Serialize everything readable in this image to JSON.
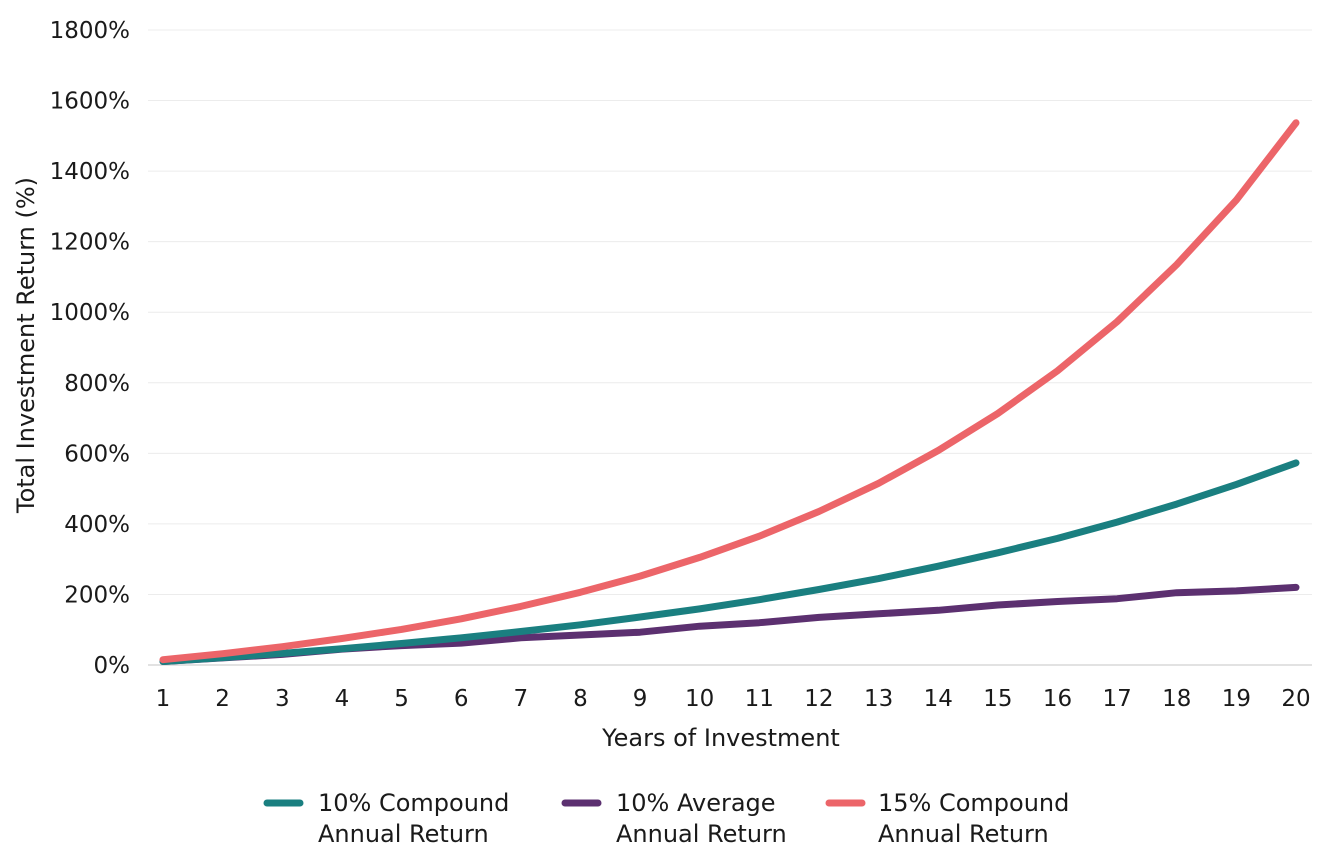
{
  "chart_data": {
    "type": "line",
    "title": "",
    "xlabel": "Years of Investment",
    "ylabel": "Total Investment Return (%)",
    "x": [
      1,
      2,
      3,
      4,
      5,
      6,
      7,
      8,
      9,
      10,
      11,
      12,
      13,
      14,
      15,
      16,
      17,
      18,
      19,
      20
    ],
    "x_tick_labels": [
      "1",
      "2",
      "3",
      "4",
      "5",
      "6",
      "7",
      "8",
      "9",
      "10",
      "11",
      "12",
      "13",
      "14",
      "15",
      "16",
      "17",
      "18",
      "19",
      "20"
    ],
    "ylim": [
      0,
      1800
    ],
    "y_ticks": [
      0,
      200,
      400,
      600,
      800,
      1000,
      1200,
      1400,
      1600,
      1800
    ],
    "y_tick_labels": [
      "0%",
      "200%",
      "400%",
      "600%",
      "800%",
      "1000%",
      "1200%",
      "1400%",
      "1600%",
      "1800%"
    ],
    "grid": true,
    "legend_position": "bottom",
    "series": [
      {
        "name_line1": "10% Compound",
        "name_line2": "Annual Return",
        "color": "#1a7f80",
        "values": [
          10,
          21,
          33,
          46,
          61,
          77,
          95,
          114,
          136,
          159,
          185,
          214,
          245,
          280,
          318,
          359,
          405,
          456,
          512,
          573
        ]
      },
      {
        "name_line1": "10% Average",
        "name_line2": "Annual Return",
        "color": "#5c3070",
        "values": [
          10,
          20,
          30,
          45,
          55,
          62,
          77,
          85,
          93,
          110,
          120,
          135,
          145,
          155,
          170,
          180,
          188,
          205,
          210,
          220
        ]
      },
      {
        "name_line1": "15% Compound",
        "name_line2": "Annual Return",
        "color": "#ec6569",
        "values": [
          15,
          32,
          52,
          75,
          101,
          131,
          166,
          206,
          252,
          305,
          365,
          435,
          515,
          608,
          713,
          834,
          973,
          1135,
          1318,
          1537
        ]
      }
    ]
  }
}
